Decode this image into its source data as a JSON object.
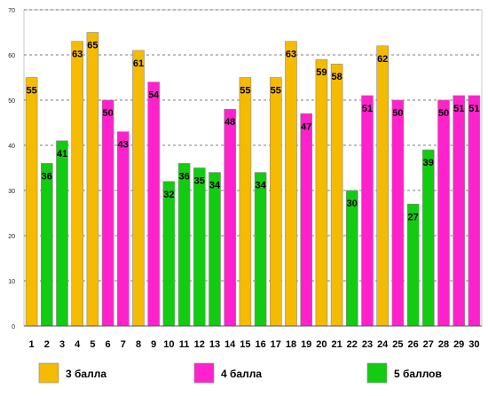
{
  "chart_data": {
    "type": "bar",
    "categories": [
      "1",
      "2",
      "3",
      "4",
      "5",
      "6",
      "7",
      "8",
      "9",
      "10",
      "11",
      "12",
      "13",
      "14",
      "15",
      "16",
      "17",
      "18",
      "19",
      "20",
      "21",
      "22",
      "23",
      "24",
      "25",
      "26",
      "27",
      "28",
      "29",
      "30"
    ],
    "values": [
      55,
      36,
      41,
      63,
      65,
      50,
      43,
      61,
      54,
      32,
      36,
      35,
      34,
      48,
      55,
      34,
      55,
      63,
      47,
      59,
      58,
      30,
      51,
      62,
      50,
      27,
      39,
      50,
      51,
      51
    ],
    "groups": [
      "3 балла",
      "5 баллов",
      "5 баллов",
      "3 балла",
      "3 балла",
      "4 балла",
      "4 балла",
      "3 балла",
      "4 балла",
      "5 баллов",
      "5 баллов",
      "5 баллов",
      "5 баллов",
      "4 балла",
      "3 балла",
      "5 баллов",
      "3 балла",
      "3 балла",
      "4 балла",
      "3 балла",
      "3 балла",
      "5 баллов",
      "4 балла",
      "3 балла",
      "4 балла",
      "5 баллов",
      "5 баллов",
      "4 балла",
      "4 балла",
      "4 балла"
    ],
    "legend": [
      {
        "name": "3 балла",
        "color": "#F5BB00"
      },
      {
        "name": "4 балла",
        "color": "#FF22CC"
      },
      {
        "name": "5 баллов",
        "color": "#11CC11"
      }
    ],
    "ylim": [
      0,
      70
    ],
    "yticks": [
      0,
      10,
      20,
      30,
      40,
      50,
      60,
      70
    ],
    "grid": true,
    "legend_placement": "bottom",
    "title": "",
    "xlabel": "",
    "ylabel": ""
  }
}
